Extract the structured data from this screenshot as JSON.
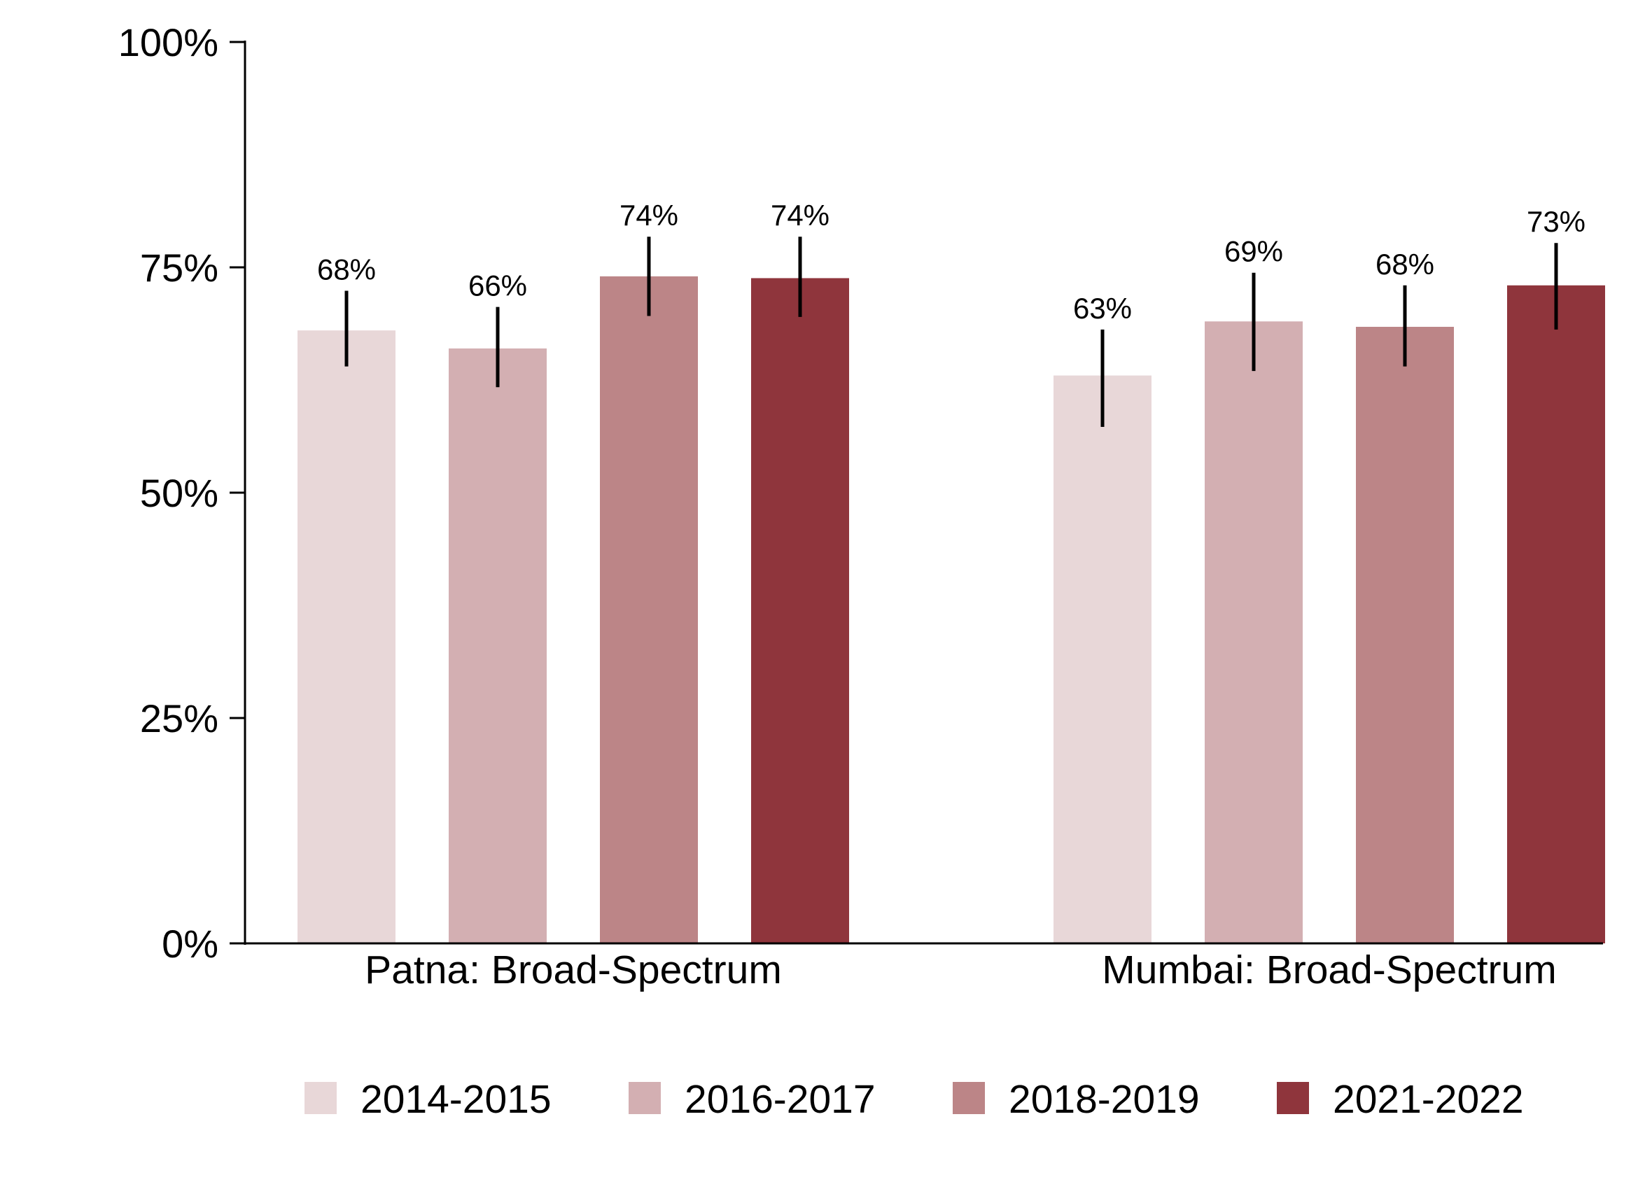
{
  "chart_data": {
    "type": "bar",
    "categories": [
      "Patna: Broad-Spectrum",
      "Mumbai: Broad-Spectrum"
    ],
    "series": [
      {
        "name": "2014-2015",
        "color": "#e8d7d8",
        "values": [
          68,
          63
        ],
        "labels": [
          "68%",
          "63%"
        ],
        "error_low": [
          64,
          57.3
        ],
        "error_high": [
          72.4,
          68.1
        ]
      },
      {
        "name": "2016-2017",
        "color": "#d3afb2",
        "values": [
          66,
          69
        ],
        "labels": [
          "66%",
          "69%"
        ],
        "error_low": [
          61.7,
          63.5
        ],
        "error_high": [
          70.6,
          74.4
        ]
      },
      {
        "name": "2018-2019",
        "color": "#bc8587",
        "values": [
          74,
          68.4
        ],
        "labels": [
          "74%",
          "68%"
        ],
        "error_low": [
          69.6,
          64
        ],
        "error_high": [
          78.4,
          73
        ]
      },
      {
        "name": "2021-2022",
        "color": "#8f353c",
        "values": [
          73.8,
          73
        ],
        "labels": [
          "74%",
          "73%"
        ],
        "error_low": [
          69.5,
          68.1
        ],
        "error_high": [
          78.4,
          77.7
        ]
      }
    ],
    "ylim": [
      0,
      100
    ],
    "yticks": [
      0,
      25,
      50,
      75,
      100
    ],
    "ytick_labels": [
      "0%",
      "25%",
      "50%",
      "75%",
      "100%"
    ],
    "title": "",
    "xlabel": "",
    "ylabel": "",
    "grid": false,
    "legend_position": "bottom"
  }
}
